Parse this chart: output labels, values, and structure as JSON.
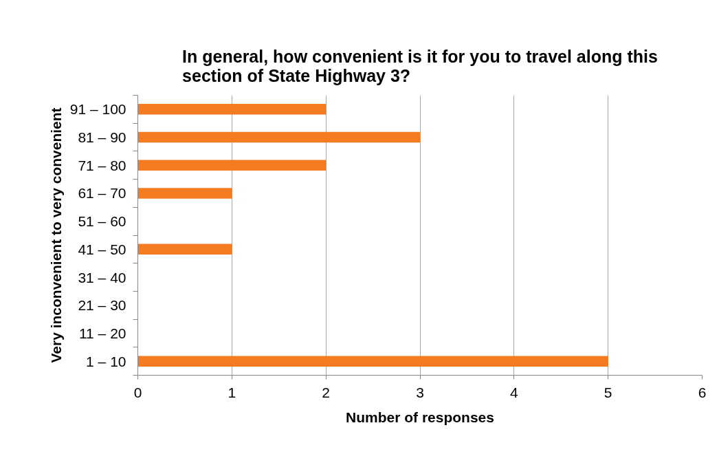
{
  "chart_data": {
    "type": "bar",
    "orientation": "horizontal",
    "title": "In general, how convenient is it for you to travel along this section of State Highway 3?",
    "xlabel": "Number of responses",
    "ylabel": "Very inconvenient to very convenient",
    "categories": [
      "91 – 100",
      "81 – 90",
      "71 – 80",
      "61 – 70",
      "51 – 60",
      "41 – 50",
      "31 – 40",
      "21 – 30",
      "11 – 20",
      "1 – 10"
    ],
    "values": [
      2,
      3,
      2,
      1,
      0,
      1,
      0,
      0,
      0,
      5
    ],
    "color": "#f47b20",
    "xlim": [
      0,
      6
    ],
    "xticks": [
      0,
      1,
      2,
      3,
      4,
      5,
      6
    ],
    "grid": "x"
  }
}
